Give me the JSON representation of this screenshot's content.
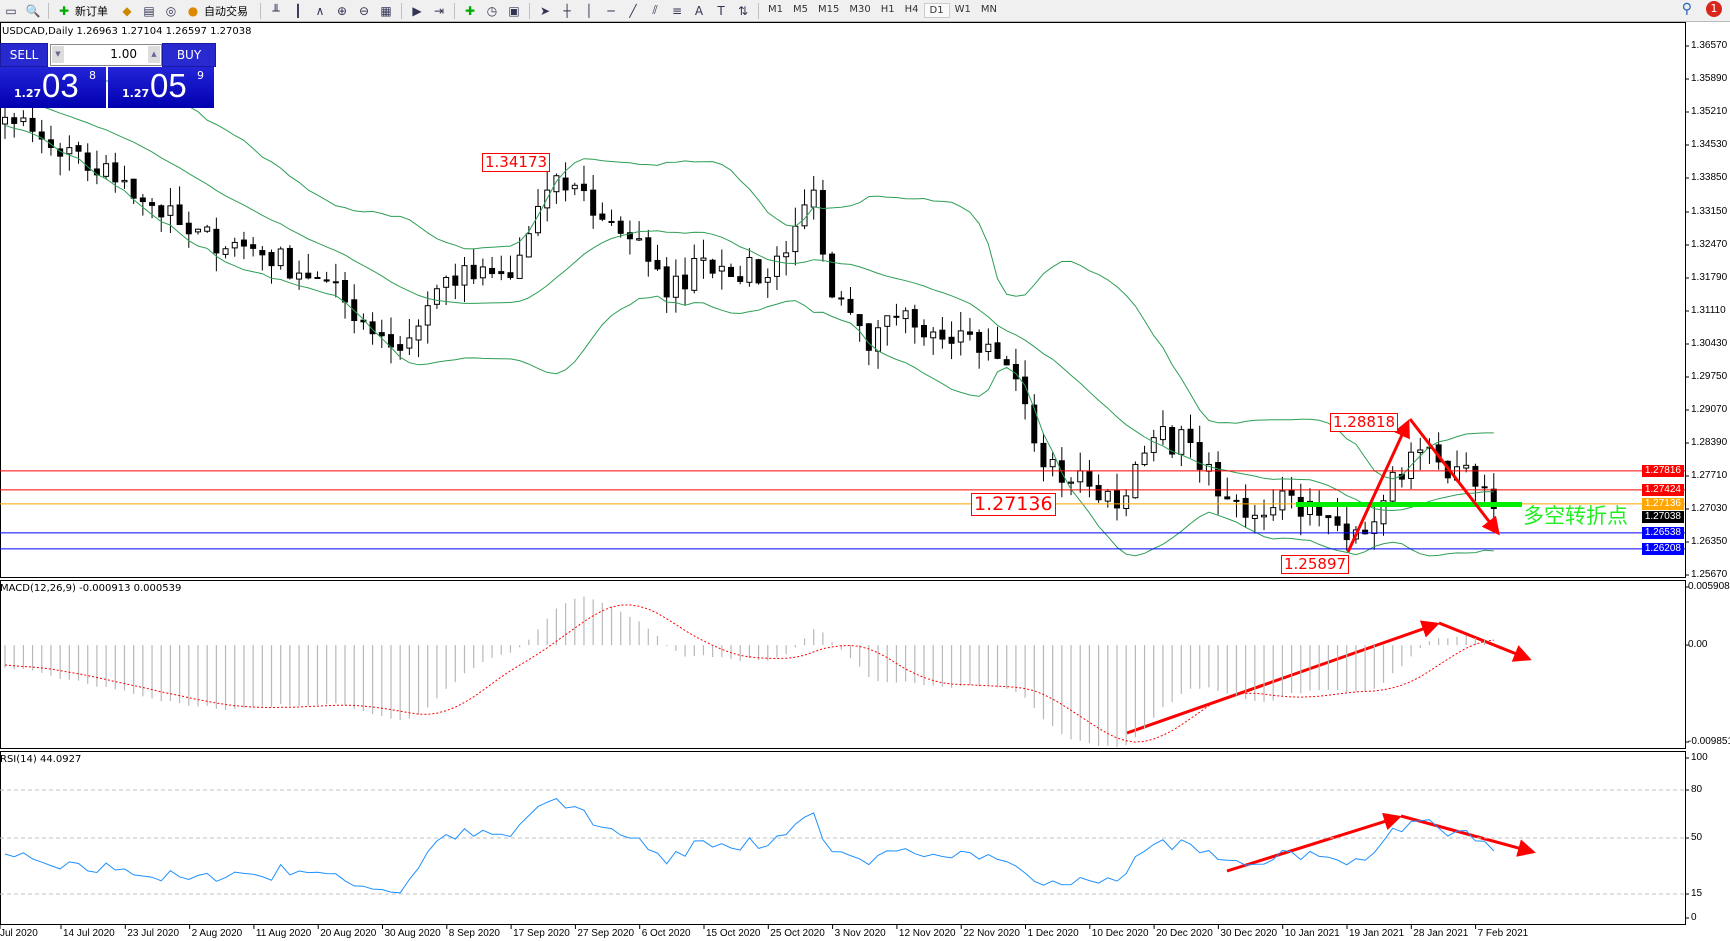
{
  "toolbar": {
    "new_order_label": "新订单",
    "auto_trade_label": "自动交易",
    "timeframes": [
      "M1",
      "M5",
      "M15",
      "M30",
      "H1",
      "H4",
      "D1",
      "W1",
      "MN"
    ],
    "active_timeframe": "D1",
    "notification_count": "1"
  },
  "header": {
    "text": "USDCAD,Daily  1.26963 1.27104 1.26597 1.27038"
  },
  "trade_panel": {
    "sell_label": "SELL",
    "buy_label": "BUY",
    "lot": "1.00",
    "sell_prefix": "1.27",
    "sell_big": "03",
    "sell_sup": "8",
    "buy_prefix": "1.27",
    "buy_big": "05",
    "buy_sup": "9"
  },
  "price_axis": {
    "ticks": [
      "1.36570",
      "1.35890",
      "1.35210",
      "1.34530",
      "1.33850",
      "1.33150",
      "1.32470",
      "1.31790",
      "1.31110",
      "1.30430",
      "1.29750",
      "1.29070",
      "1.28390",
      "1.27710",
      "1.27030",
      "1.26350",
      "1.25670"
    ],
    "range": [
      1.2567,
      1.3657
    ]
  },
  "levels": [
    {
      "price": "1.27816",
      "color": "#ff0000"
    },
    {
      "price": "1.27424",
      "color": "#ff0000"
    },
    {
      "price": "1.27136",
      "color": "#ffa500"
    },
    {
      "price": "1.27038",
      "color": "#000000"
    },
    {
      "price": "1.26538",
      "color": "#0000ff"
    },
    {
      "price": "1.26208",
      "color": "#0000ff"
    }
  ],
  "annotations": {
    "high_1": "1.34173",
    "high_2": "1.28818",
    "pivot": "1.27136",
    "low_1": "1.25897",
    "pivot_text": "多空转折点"
  },
  "macd": {
    "label": "MACD(12,26,9) -0.000913 0.000539",
    "ticks": [
      "0.005908",
      "0.00",
      "-0.009851"
    ]
  },
  "rsi": {
    "label": "RSI(14) 44.0927",
    "ticks": [
      "100",
      "80",
      "50",
      "15",
      "0"
    ]
  },
  "dates": [
    "Jul 2020",
    "14 Jul 2020",
    "23 Jul 2020",
    "2 Aug 2020",
    "11 Aug 2020",
    "20 Aug 2020",
    "30 Aug 2020",
    "8 Sep 2020",
    "17 Sep 2020",
    "27 Sep 2020",
    "6 Oct 2020",
    "15 Oct 2020",
    "25 Oct 2020",
    "3 Nov 2020",
    "12 Nov 2020",
    "22 Nov 2020",
    "1 Dec 2020",
    "10 Dec 2020",
    "20 Dec 2020",
    "30 Dec 2020",
    "10 Jan 2021",
    "19 Jan 2021",
    "28 Jan 2021",
    "7 Feb 2021"
  ],
  "colors": {
    "bands": "#2e9e55",
    "macd_hist": "#b8b8b8",
    "signal": "#ff0000",
    "rsi": "#1e90ff",
    "arrow": "#ff0000",
    "pivot_line": "#00ee00"
  },
  "chart_data": {
    "type": "candlestick",
    "close_anchors": [
      [
        -25,
        1.362
      ],
      [
        -10,
        1.355
      ],
      [
        0,
        1.351
      ],
      [
        6,
        1.343
      ],
      [
        13,
        1.338
      ],
      [
        20,
        1.327
      ],
      [
        27,
        1.324
      ],
      [
        34,
        1.318
      ],
      [
        41,
        1.306
      ],
      [
        43,
        1.303
      ],
      [
        48,
        1.318
      ],
      [
        55,
        1.318
      ],
      [
        59,
        1.336
      ],
      [
        62,
        1.337
      ],
      [
        65,
        1.33
      ],
      [
        69,
        1.326
      ],
      [
        72,
        1.314
      ],
      [
        76,
        1.322
      ],
      [
        83,
        1.318
      ],
      [
        88,
        1.336
      ],
      [
        90,
        1.314
      ],
      [
        94,
        1.303
      ],
      [
        97,
        1.31
      ],
      [
        104,
        1.307
      ],
      [
        109,
        1.3
      ],
      [
        111,
        1.292
      ],
      [
        113,
        1.279
      ],
      [
        118,
        1.275
      ],
      [
        122,
        1.273
      ],
      [
        125,
        1.285
      ],
      [
        129,
        1.284
      ],
      [
        132,
        1.273
      ],
      [
        136,
        1.269
      ],
      [
        139,
        1.274
      ],
      [
        143,
        1.269
      ],
      [
        146,
        1.264
      ],
      [
        150,
        1.272
      ],
      [
        153,
        1.282
      ],
      [
        156,
        1.28
      ],
      [
        158,
        1.279
      ],
      [
        160,
        1.275
      ],
      [
        162,
        1.2704
      ]
    ]
  }
}
